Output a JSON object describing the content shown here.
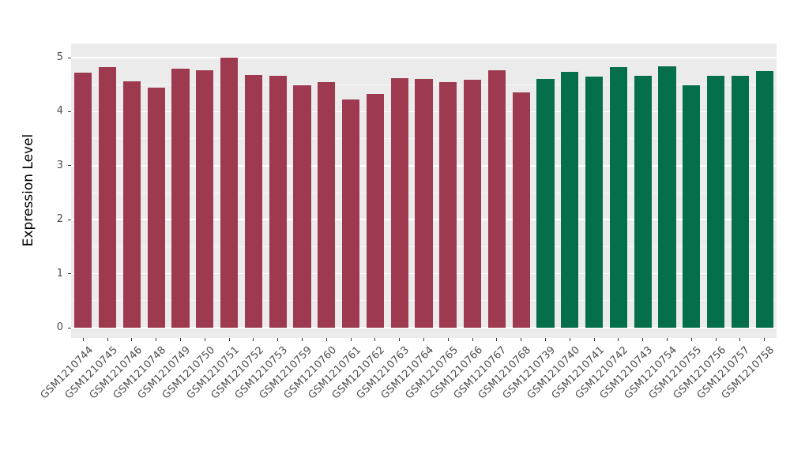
{
  "chart_data": {
    "type": "bar",
    "title": "",
    "xlabel": "",
    "ylabel": "Expression Level",
    "ylim": [
      0,
      5
    ],
    "y_ticks": [
      0,
      1,
      2,
      3,
      4,
      5
    ],
    "grid": "on",
    "legend": "none",
    "panel_background": "#ebebeb",
    "categories": [
      "GSM1210744",
      "GSM1210745",
      "GSM1210746",
      "GSM1210748",
      "GSM1210749",
      "GSM1210750",
      "GSM1210751",
      "GSM1210752",
      "GSM1210753",
      "GSM1210759",
      "GSM1210760",
      "GSM1210761",
      "GSM1210762",
      "GSM1210763",
      "GSM1210764",
      "GSM1210765",
      "GSM1210766",
      "GSM1210767",
      "GSM1210768",
      "GSM1210739",
      "GSM1210740",
      "GSM1210741",
      "GSM1210742",
      "GSM1210743",
      "GSM1210754",
      "GSM1210755",
      "GSM1210756",
      "GSM1210757",
      "GSM1210758"
    ],
    "values": [
      4.72,
      4.83,
      4.56,
      4.44,
      4.8,
      4.77,
      5.0,
      4.68,
      4.66,
      4.49,
      4.55,
      4.23,
      4.33,
      4.62,
      4.61,
      4.55,
      4.59,
      4.77,
      4.36,
      4.61,
      4.74,
      4.65,
      4.83,
      4.67,
      4.84,
      4.49,
      4.66,
      4.66,
      4.75
    ],
    "groups": [
      "maroon",
      "maroon",
      "maroon",
      "maroon",
      "maroon",
      "maroon",
      "maroon",
      "maroon",
      "maroon",
      "maroon",
      "maroon",
      "maroon",
      "maroon",
      "maroon",
      "maroon",
      "maroon",
      "maroon",
      "maroon",
      "maroon",
      "green",
      "green",
      "green",
      "green",
      "green",
      "green",
      "green",
      "green",
      "green",
      "green"
    ],
    "group_colors": {
      "maroon": "#9e3a4f",
      "green": "#056f4c"
    }
  }
}
